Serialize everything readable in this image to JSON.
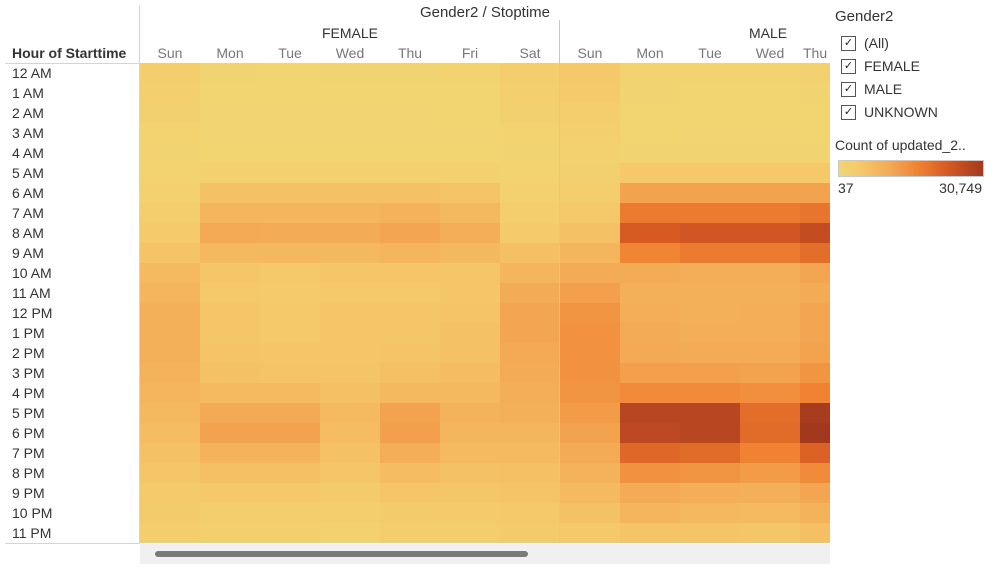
{
  "title": "Gender2 / Stoptime",
  "row_header": "Hour of Starttime",
  "groups": [
    {
      "label": "FEMALE",
      "days": [
        "Sun",
        "Mon",
        "Tue",
        "Wed",
        "Thu",
        "Fri",
        "Sat"
      ]
    },
    {
      "label": "MALE",
      "days": [
        "Sun",
        "Mon",
        "Tue",
        "Wed",
        "Thu"
      ]
    }
  ],
  "hours": [
    "12 AM",
    "1 AM",
    "2 AM",
    "3 AM",
    "4 AM",
    "5 AM",
    "6 AM",
    "7 AM",
    "8 AM",
    "9 AM",
    "10 AM",
    "11 AM",
    "12 PM",
    "1 PM",
    "2 PM",
    "3 PM",
    "4 PM",
    "5 PM",
    "6 PM",
    "7 PM",
    "8 PM",
    "9 PM",
    "10 PM",
    "11 PM"
  ],
  "legend": {
    "filter_title": "Gender2",
    "filters": [
      {
        "label": "(All)",
        "checked": true
      },
      {
        "label": "FEMALE",
        "checked": true
      },
      {
        "label": "MALE",
        "checked": true
      },
      {
        "label": "UNKNOWN",
        "checked": true
      }
    ],
    "color_title": "Count of updated_2..",
    "min_label": "37",
    "max_label": "30,749",
    "colors": {
      "low": "#f2d572",
      "high": "#a2391f"
    }
  },
  "chart_data": {
    "type": "heatmap",
    "title": "Gender2 / Stoptime",
    "ylabel": "Hour of Starttime",
    "color_range": [
      37,
      30749
    ],
    "columns": [
      {
        "group": "FEMALE",
        "day": "Sun"
      },
      {
        "group": "FEMALE",
        "day": "Mon"
      },
      {
        "group": "FEMALE",
        "day": "Tue"
      },
      {
        "group": "FEMALE",
        "day": "Wed"
      },
      {
        "group": "FEMALE",
        "day": "Thu"
      },
      {
        "group": "FEMALE",
        "day": "Fri"
      },
      {
        "group": "FEMALE",
        "day": "Sat"
      },
      {
        "group": "MALE",
        "day": "Sun"
      },
      {
        "group": "MALE",
        "day": "Mon"
      },
      {
        "group": "MALE",
        "day": "Tue"
      },
      {
        "group": "MALE",
        "day": "Wed"
      },
      {
        "group": "MALE",
        "day": "Thu"
      }
    ],
    "values": [
      [
        2500,
        700,
        500,
        600,
        700,
        1000,
        2500,
        4500,
        1200,
        1000,
        1100,
        1300
      ],
      [
        2200,
        300,
        300,
        300,
        300,
        500,
        2200,
        4000,
        600,
        500,
        500,
        600
      ],
      [
        1800,
        200,
        150,
        150,
        150,
        300,
        1800,
        3000,
        400,
        300,
        300,
        400
      ],
      [
        1200,
        150,
        100,
        100,
        100,
        200,
        1200,
        2000,
        300,
        200,
        200,
        300
      ],
      [
        800,
        300,
        300,
        300,
        300,
        300,
        800,
        1500,
        600,
        600,
        600,
        600
      ],
      [
        1000,
        1500,
        1500,
        1500,
        1500,
        1400,
        1000,
        1800,
        4500,
        4500,
        4500,
        4500
      ],
      [
        1500,
        6000,
        6000,
        6000,
        6000,
        5500,
        1500,
        2500,
        12000,
        12000,
        12000,
        12000
      ],
      [
        3000,
        8500,
        8500,
        8500,
        9000,
        8000,
        3000,
        4500,
        18000,
        18000,
        18000,
        19000
      ],
      [
        4000,
        11000,
        10500,
        10500,
        11500,
        10000,
        4000,
        6000,
        23000,
        24000,
        24000,
        26000
      ],
      [
        5500,
        8000,
        8000,
        8000,
        8500,
        8000,
        6500,
        8500,
        16500,
        18000,
        18000,
        20000
      ],
      [
        7500,
        5000,
        4500,
        5000,
        5000,
        5000,
        8500,
        10500,
        10500,
        10000,
        10000,
        11500
      ],
      [
        8500,
        4500,
        4000,
        4500,
        4500,
        5000,
        10500,
        12500,
        9500,
        9500,
        9500,
        10500
      ],
      [
        9500,
        5000,
        4500,
        5000,
        5000,
        5500,
        11500,
        14000,
        10000,
        9500,
        10000,
        11500
      ],
      [
        9500,
        5000,
        4500,
        5000,
        5000,
        6000,
        11500,
        14500,
        10500,
        10000,
        10000,
        11500
      ],
      [
        9500,
        5500,
        5000,
        5000,
        5500,
        6000,
        11000,
        14500,
        11000,
        10500,
        10500,
        12000
      ],
      [
        9000,
        6000,
        5500,
        5500,
        6500,
        7000,
        10500,
        14500,
        12500,
        12500,
        12000,
        14000
      ],
      [
        8500,
        7500,
        7500,
        6500,
        8000,
        8000,
        10000,
        14000,
        15500,
        15500,
        15000,
        17000
      ],
      [
        8000,
        11000,
        11000,
        7500,
        12000,
        9000,
        9500,
        13000,
        27500,
        27500,
        20000,
        30000
      ],
      [
        7000,
        12000,
        12000,
        7000,
        12500,
        8500,
        8500,
        12000,
        27000,
        27500,
        20500,
        30749
      ],
      [
        6000,
        9000,
        9000,
        6000,
        10000,
        7500,
        7500,
        10500,
        21000,
        20500,
        17000,
        22000
      ],
      [
        5000,
        6500,
        6500,
        5000,
        7000,
        6000,
        6500,
        9000,
        14500,
        14000,
        13000,
        15500
      ],
      [
        4000,
        4500,
        4500,
        3500,
        5000,
        5000,
        5500,
        7500,
        10500,
        10000,
        9500,
        11500
      ],
      [
        3500,
        3000,
        3000,
        2500,
        3500,
        4000,
        4500,
        6000,
        8500,
        8000,
        7500,
        9000
      ],
      [
        2500,
        2000,
        2000,
        1500,
        2500,
        3000,
        3500,
        4500,
        5500,
        5500,
        5000,
        6500
      ]
    ]
  }
}
